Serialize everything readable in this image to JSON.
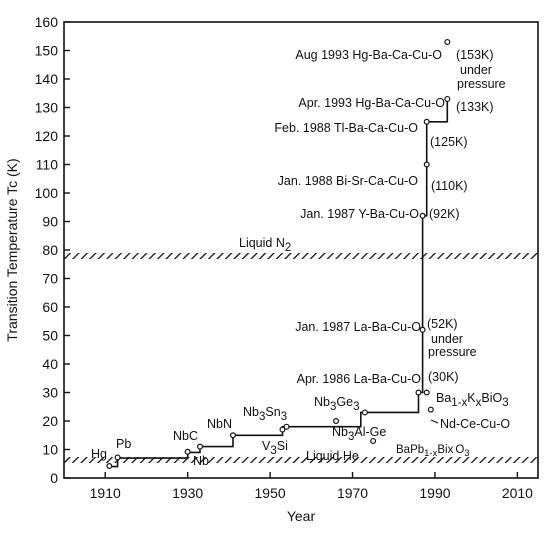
{
  "chart_data": {
    "type": "line",
    "xlabel": "Year",
    "ylabel": "Transition Temperature Tc (K)",
    "xlim": [
      1900,
      2015
    ],
    "ylim": [
      0,
      160
    ],
    "xticks": [
      "1910",
      "1930",
      "1950",
      "1970",
      "1990",
      "2010"
    ],
    "xtick_values": [
      1910,
      1930,
      1950,
      1970,
      1990,
      2010
    ],
    "yticks": [
      "0",
      "10",
      "20",
      "30",
      "40",
      "50",
      "60",
      "70",
      "80",
      "90",
      "100",
      "110",
      "120",
      "130",
      "140",
      "150",
      "160"
    ],
    "ytick_values": [
      0,
      10,
      20,
      30,
      40,
      50,
      60,
      70,
      80,
      90,
      100,
      110,
      120,
      130,
      140,
      150,
      160
    ],
    "grid": false,
    "record_line": {
      "x": [
        1911,
        1913,
        1913,
        1930,
        1930,
        1933,
        1933,
        1941,
        1941,
        1953,
        1953,
        1972,
        1972,
        1986,
        1986,
        1987,
        1987,
        1988,
        1988,
        1993,
        1993
      ],
      "y": [
        4,
        4,
        7,
        7,
        9,
        9,
        11,
        11,
        15,
        15,
        18,
        18,
        23,
        23,
        30,
        30,
        92,
        92,
        125,
        125,
        133
      ]
    },
    "reference_bands": [
      {
        "label": "Liquid N2",
        "y": 77
      },
      {
        "label": "Liquid He",
        "y": 4.2
      }
    ],
    "points": [
      {
        "label": "Hg",
        "x": 1911,
        "y": 4.2
      },
      {
        "label": "Pb",
        "x": 1913,
        "y": 7.2
      },
      {
        "label": "Nb",
        "x": 1930,
        "y": 9.2
      },
      {
        "label": "NbC",
        "x": 1933,
        "y": 11
      },
      {
        "label": "NbN",
        "x": 1941,
        "y": 15
      },
      {
        "label": "V3Si",
        "x": 1953,
        "y": 17
      },
      {
        "label": "Nb3Sn",
        "x": 1954,
        "y": 18
      },
      {
        "label": "Nb3Al-Ge",
        "x": 1966,
        "y": 20
      },
      {
        "label": "Nb3Ge",
        "x": 1973,
        "y": 23
      },
      {
        "label": "BaPb1-xBixO3",
        "x": 1975,
        "y": 13
      },
      {
        "label": "La-Ba-Cu-O",
        "x": 1986,
        "y": 30
      },
      {
        "label": "La-Ba-Cu-O (under pressure)",
        "x": 1987,
        "y": 52
      },
      {
        "label": "Y-Ba-Cu-O",
        "x": 1987,
        "y": 92
      },
      {
        "label": "Bi-Sr-Ca-Cu-O",
        "x": 1988,
        "y": 110
      },
      {
        "label": "Tl-Ba-Ca-Cu-O",
        "x": 1988,
        "y": 125
      },
      {
        "label": "Ba1-xKxBiO3",
        "x": 1988,
        "y": 30
      },
      {
        "label": "Nd-Ce-Cu-O",
        "x": 1989,
        "y": 24
      },
      {
        "label": "Hg-Ba-Ca-Cu-O",
        "x": 1993,
        "y": 133
      },
      {
        "label": "Hg-Ba-Ca-Cu-O (under pressure)",
        "x": 1993,
        "y": 153
      }
    ],
    "annotations": {
      "hg": "Hg",
      "pb": "Pb",
      "nbc": "NbC",
      "nb": "Nb",
      "nbn": "NbN",
      "nb3sn_a": "Nb",
      "nb3sn_b": "3",
      "nb3sn_c": "Sn",
      "nb3sn_d": "3",
      "v3si_a": "V",
      "v3si_b": "3",
      "v3si_c": "Si",
      "nb3ge_a": "Nb",
      "nb3ge_b": "3",
      "nb3ge_c": "Ge",
      "nb3ge_d": "3",
      "nb3alge_a": "Nb",
      "nb3alge_b": "3",
      "nb3alge_c": "Al-Ge",
      "bapbbi_a": "BaPb",
      "bapbbi_b": "1-x",
      "bapbbi_c": "Bix",
      "bapbbi_d": "O",
      "bapbbi_e": "3",
      "liquid_he": "Liquid He",
      "liquid_n2": "Liquid N",
      "liquid_n2_sub": "2",
      "apr1986": "Apr. 1986 La-Ba-Cu-O",
      "k30": "(30K)",
      "jan1987la": "Jan. 1987 La-Ba-Cu-O",
      "k52": "(52K)",
      "under1": "under",
      "pressure1": "pressure",
      "bak_a": "Ba",
      "bak_b": "1-x",
      "bak_c": "K",
      "bak_d": "x",
      "bak_e": "BiO",
      "bak_f": "3",
      "ndce": "Nd-Ce-Cu-O",
      "jan1987y": "Jan. 1987 Y-Ba-Cu-O",
      "k92": "(92K)",
      "jan1988": "Jan. 1988 Bi-Sr-Ca-Cu-O",
      "k110": "(110K)",
      "feb1988": "Feb. 1988 Tl-Ba-Ca-Cu-O",
      "k125": "(125K)",
      "apr1993": "Apr. 1993 Hg-Ba-Ca-Cu-O",
      "k133": "(133K)",
      "aug1993": "Aug 1993 Hg-Ba-Ca-Cu-O",
      "k153": "(153K)",
      "under2": "under",
      "pressure2": "pressure"
    }
  }
}
